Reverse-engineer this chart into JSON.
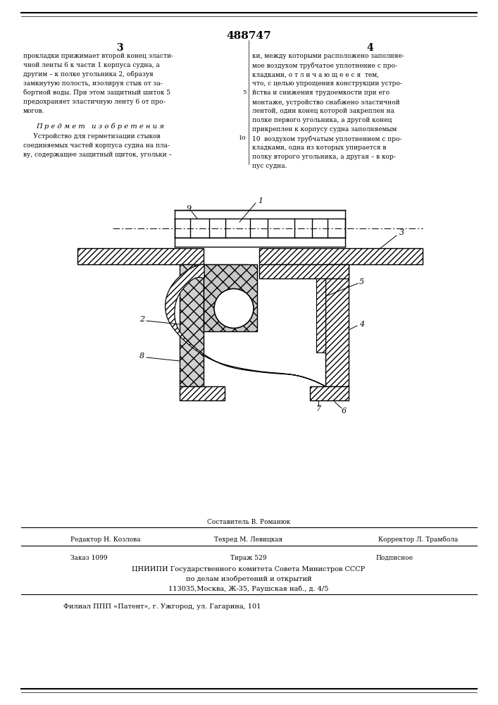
{
  "patent_number": "488747",
  "col3_header": "3",
  "col4_header": "4",
  "col3_text": [
    "прокладки прижимает второй конец эласти-",
    "чной ленты 6 к части 1 корпуса судна, а",
    "другим – к полке угольника 2, образуя",
    "замкнутую полость, изолируя стык от за-",
    "бортной воды. При этом защитный шиток 5",
    "предохраняет эластичную ленту 6 от про-",
    "могов."
  ],
  "predmet_header": "П р е д м е т   и з о б р е т е н и я",
  "predmet_text": [
    "     Устройство для герметизации стыков",
    "соединяемых частей корпуса судна на пла-",
    "ву, содержащее защитный щиток, угольки –"
  ],
  "col4_text": [
    "ки, между которыми расположено заполняе-",
    "мое воздухом трубчатое уплотнение с про-",
    "кладками, о т л и ч а ю щ е е с я  тем,",
    "что, с целью упрощения конструкции устро-",
    "йства и снижения трудоемкости при его",
    "монтаже, устройство снабжено эластичной",
    "лентой, один конец которой закреплен на",
    "полке первого угольника, а другой конец",
    "прикреплен к корпусу судна заполняемым",
    "10  воздухом трубчатым уплотнением с про-",
    "кладками, одна из которых упирается в",
    "полку второго угольника, а другая – в кор-",
    "пус судна."
  ],
  "col4_linenum": "     5",
  "col4_linenum2": "    10",
  "footer_sestavitel_label": "Составитель В. Романюк",
  "footer_editor": "Редактор Н. Козлова",
  "footer_tech": "Техред М. Левицкая",
  "footer_corrector": "Корректор Л. Трамбола",
  "footer_order": "Заказ 1099",
  "footer_tirazh": "Тираж 529",
  "footer_podpisnoe": "Подписное",
  "footer_tsniipi": "ЦНИИПИ Государственного комитета Совета Министров СССР",
  "footer_po_delam": "по делам изобретений и открытий",
  "footer_address": "113035,Москва, Ж-35, Раушская наб., д. 4/5",
  "footer_filial": "Филиал ППП «Патент», г. Ужгород, ул. Гагарина, 101",
  "bg_color": "#ffffff"
}
